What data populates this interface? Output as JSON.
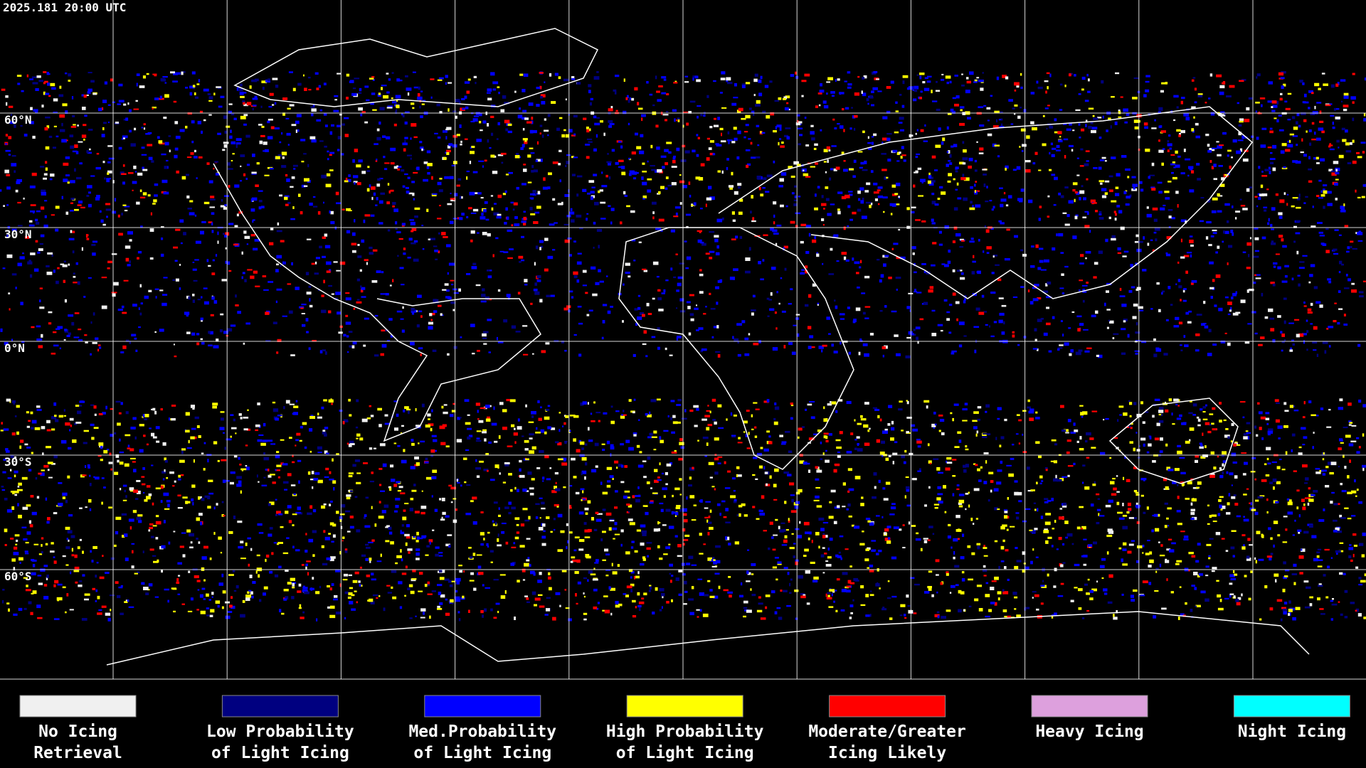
{
  "timestamp": "2025.181 20:00 UTC",
  "latitude_labels": [
    "60°N",
    "30°N",
    "0°N",
    "30°S",
    "60°S"
  ],
  "legend": [
    {
      "color": "#f0f0f0",
      "lines": [
        "No Icing",
        "Retrieval"
      ]
    },
    {
      "color": "#000080",
      "lines": [
        "Low Probability",
        "of Light Icing"
      ]
    },
    {
      "color": "#0000ff",
      "lines": [
        "Med.Probability",
        "of Light Icing"
      ]
    },
    {
      "color": "#ffff00",
      "lines": [
        "High Probability",
        "of Light Icing"
      ]
    },
    {
      "color": "#ff0000",
      "lines": [
        "Moderate/Greater",
        "Icing Likely"
      ]
    },
    {
      "color": "#dda0dd",
      "lines": [
        "Heavy Icing"
      ]
    },
    {
      "color": "#00ffff",
      "lines": [
        "Night Icing"
      ]
    }
  ]
}
